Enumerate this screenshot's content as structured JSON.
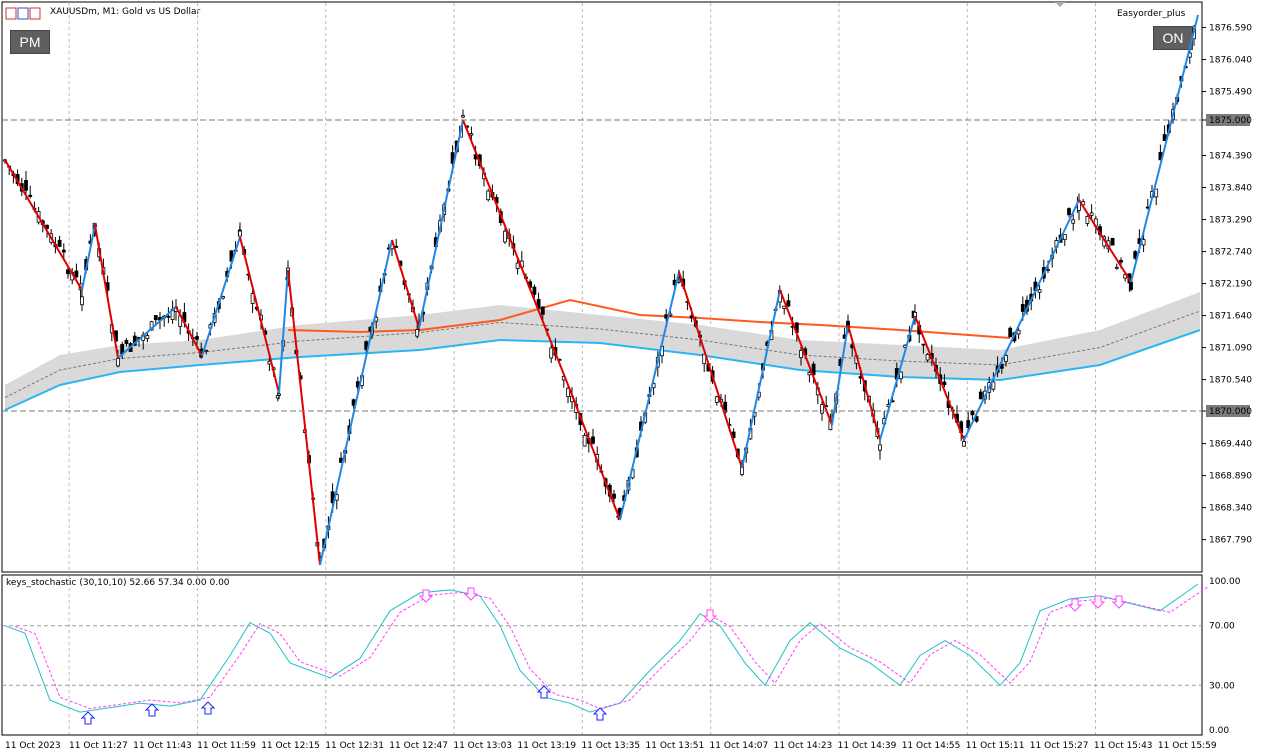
{
  "header": {
    "symbol_title": "XAUUSDm, M1:  Gold vs US Dollar",
    "expert_label": "Easyorder_plus",
    "pm_button": "PM",
    "on_button": "ON"
  },
  "price_axis": {
    "ticks": [
      "1876.590",
      "1876.040",
      "1875.490",
      "1875.000",
      "1874.390",
      "1873.840",
      "1873.290",
      "1872.740",
      "1872.190",
      "1871.640",
      "1871.090",
      "1870.540",
      "1870.000",
      "1869.440",
      "1868.890",
      "1868.340",
      "1867.790"
    ],
    "highlighted_levels": [
      "1875.000",
      "1870.000"
    ]
  },
  "indicator": {
    "label": "keys_stochastic (30,10,10) 52.66 57.34 0.00 0.00",
    "ticks": [
      "100.00",
      "70.00",
      "30.00",
      "0.00"
    ]
  },
  "time_axis": {
    "ticks": [
      "11 Oct 2023",
      "11 Oct 11:27",
      "11 Oct 11:43",
      "11 Oct 11:59",
      "11 Oct 12:15",
      "11 Oct 12:31",
      "11 Oct 12:47",
      "11 Oct 13:03",
      "11 Oct 13:19",
      "11 Oct 13:35",
      "11 Oct 13:51",
      "11 Oct 14:07",
      "11 Oct 14:23",
      "11 Oct 14:39",
      "11 Oct 14:55",
      "11 Oct 15:11",
      "11 Oct 15:27",
      "11 Oct 15:43",
      "11 Oct 15:59"
    ]
  },
  "colors": {
    "zigzag_up": "#1e88e5",
    "zigzag_down": "#e00000",
    "ma_upper": "#ff5a1e",
    "ma_lower": "#29b6f6",
    "band": "#d9d9d9",
    "stoch_main": "#20c0c8",
    "stoch_signal": "#ff40ff",
    "arrow_up": "#2020ff",
    "arrow_down": "#ff40ff"
  }
}
